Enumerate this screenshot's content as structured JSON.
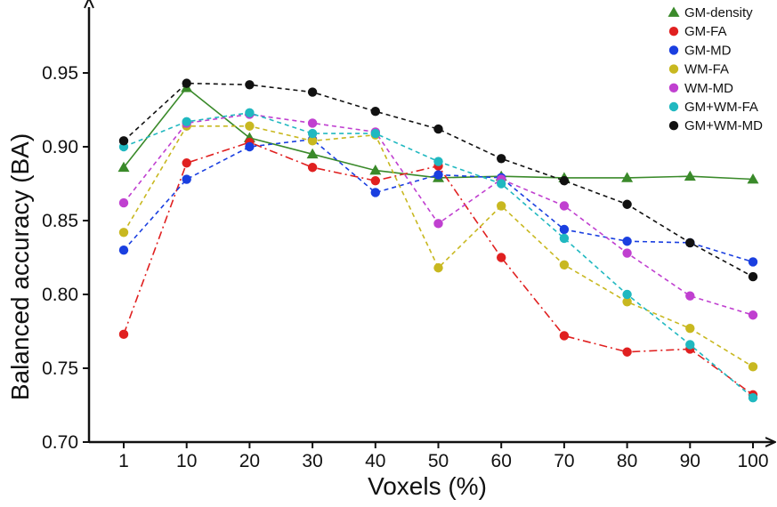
{
  "chart_data": {
    "type": "line",
    "xlabel": "Voxels (%)",
    "ylabel": "Balanced accuracy (BA)",
    "categories": [
      "1",
      "10",
      "20",
      "30",
      "40",
      "50",
      "60",
      "70",
      "80",
      "90",
      "100"
    ],
    "ylim": [
      0.7,
      0.98
    ],
    "yticks": [
      "0.70",
      "0.75",
      "0.80",
      "0.85",
      "0.90",
      "0.95"
    ],
    "legend_position": "top-right",
    "grid": false,
    "series": [
      {
        "name": "GM-density",
        "color": "#3a8a2a",
        "marker": "triangle",
        "line": "solid",
        "values": [
          0.886,
          0.94,
          0.906,
          0.895,
          0.884,
          0.879,
          0.88,
          0.879,
          0.879,
          0.88,
          0.878
        ]
      },
      {
        "name": "GM-FA",
        "color": "#e02020",
        "marker": "circle",
        "line": "dashdot",
        "values": [
          0.773,
          0.889,
          0.903,
          0.886,
          0.877,
          0.887,
          0.825,
          0.772,
          0.761,
          0.763,
          0.732
        ]
      },
      {
        "name": "GM-MD",
        "color": "#1a3fe0",
        "marker": "circle",
        "line": "dashed",
        "values": [
          0.83,
          0.878,
          0.9,
          0.905,
          0.869,
          0.881,
          0.879,
          0.844,
          0.836,
          0.835,
          0.822
        ]
      },
      {
        "name": "WM-FA",
        "color": "#c8b820",
        "marker": "circle",
        "line": "dashed",
        "values": [
          0.842,
          0.914,
          0.914,
          0.904,
          0.908,
          0.818,
          0.86,
          0.82,
          0.795,
          0.777,
          0.751
        ]
      },
      {
        "name": "WM-MD",
        "color": "#c040d0",
        "marker": "circle",
        "line": "dashed",
        "values": [
          0.862,
          0.916,
          0.922,
          0.916,
          0.91,
          0.848,
          0.878,
          0.86,
          0.828,
          0.799,
          0.786
        ]
      },
      {
        "name": "GM+WM-FA",
        "color": "#20b8c0",
        "marker": "circle",
        "line": "dashed",
        "values": [
          0.9,
          0.917,
          0.923,
          0.909,
          0.909,
          0.89,
          0.875,
          0.838,
          0.8,
          0.766,
          0.73
        ]
      },
      {
        "name": "GM+WM-MD",
        "color": "#111111",
        "marker": "circle",
        "line": "dashed",
        "values": [
          0.904,
          0.943,
          0.942,
          0.937,
          0.924,
          0.912,
          0.892,
          0.877,
          0.861,
          0.835,
          0.812
        ]
      }
    ]
  }
}
